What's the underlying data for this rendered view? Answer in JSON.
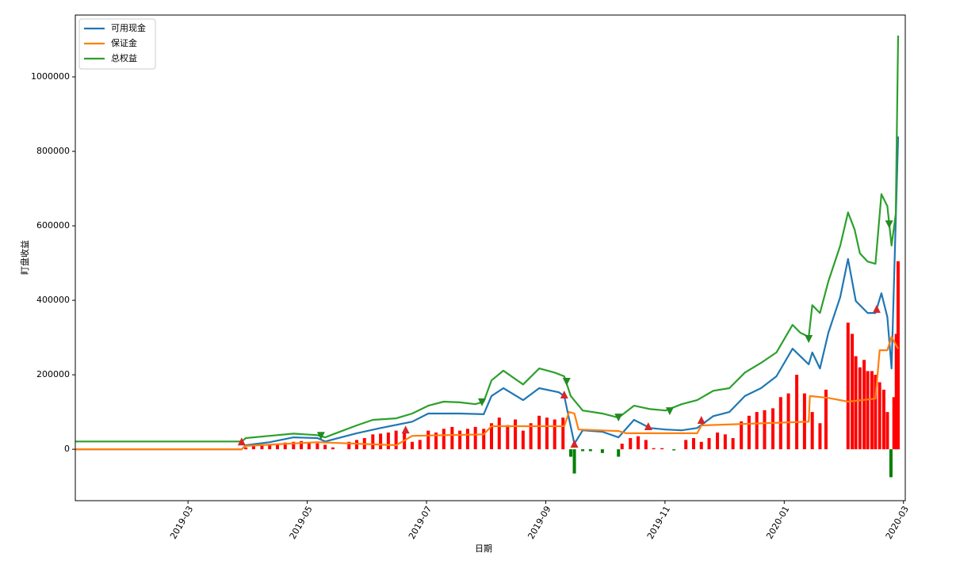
{
  "chart_data": {
    "type": "line",
    "xlabel": "日期",
    "ylabel": "盯盘收益",
    "xlim": [
      1.11,
      15.03
    ],
    "ylim": [
      -138000,
      1166000
    ],
    "xticks": [
      {
        "value": 3,
        "label": "2019-03"
      },
      {
        "value": 5,
        "label": "2019-05"
      },
      {
        "value": 7,
        "label": "2019-07"
      },
      {
        "value": 9,
        "label": "2019-09"
      },
      {
        "value": 11,
        "label": "2019-11"
      },
      {
        "value": 13,
        "label": "2020-01"
      },
      {
        "value": 15,
        "label": "2020-03"
      }
    ],
    "yticks": [
      0,
      200000,
      400000,
      600000,
      800000,
      1000000
    ],
    "legend": "upper left",
    "series": [
      {
        "name": "可用现金",
        "color": "#1f77b4",
        "x": [
          1.11,
          3.9,
          3.97,
          4.37,
          4.77,
          5.17,
          5.3,
          5.83,
          6.23,
          6.76,
          7.03,
          7.56,
          7.96,
          8.09,
          8.29,
          8.62,
          8.89,
          9.22,
          9.31,
          9.48,
          9.62,
          9.95,
          10.22,
          10.48,
          10.75,
          11.01,
          11.28,
          11.54,
          11.81,
          12.08,
          12.34,
          12.61,
          12.87,
          13.14,
          13.41,
          13.47,
          13.6,
          13.74,
          13.94,
          14.07,
          14.2,
          14.4,
          14.53,
          14.63,
          14.73,
          14.8,
          14.91
        ],
        "values": [
          0,
          0,
          11000,
          19000,
          32000,
          30000,
          21000,
          43000,
          57000,
          74000,
          96000,
          96000,
          94000,
          143000,
          164000,
          132000,
          164000,
          153000,
          143000,
          15000,
          51000,
          47000,
          32000,
          79000,
          57000,
          53000,
          51000,
          57000,
          89000,
          100000,
          143000,
          164000,
          196000,
          270000,
          228000,
          260000,
          217000,
          313000,
          409000,
          511000,
          398000,
          366000,
          366000,
          419000,
          355000,
          217000,
          840000
        ]
      },
      {
        "name": "保证金",
        "color": "#ff7f0e",
        "x": [
          1.11,
          3.9,
          3.97,
          5.17,
          6.49,
          6.76,
          7.96,
          8.09,
          9.31,
          9.39,
          9.48,
          9.55,
          10.22,
          10.35,
          11.54,
          11.61,
          13.41,
          13.43,
          13.74,
          14.07,
          14.53,
          14.6,
          14.73,
          14.8,
          14.91
        ],
        "values": [
          0,
          0,
          9000,
          19000,
          11000,
          36000,
          40000,
          62000,
          62000,
          100000,
          96000,
          53000,
          49000,
          43000,
          43000,
          64000,
          74000,
          143000,
          138000,
          128000,
          136000,
          266000,
          266000,
          302000,
          270000
        ]
      },
      {
        "name": "总权益",
        "color": "#2ca02c",
        "x": [
          1.11,
          3.9,
          3.97,
          4.37,
          4.77,
          5.17,
          5.3,
          5.43,
          5.83,
          6.1,
          6.49,
          6.76,
          7.03,
          7.29,
          7.56,
          7.82,
          7.96,
          8.09,
          8.29,
          8.62,
          8.89,
          9.15,
          9.31,
          9.42,
          9.62,
          9.95,
          10.22,
          10.48,
          10.75,
          11.01,
          11.28,
          11.54,
          11.81,
          12.08,
          12.34,
          12.61,
          12.87,
          13.14,
          13.27,
          13.41,
          13.47,
          13.6,
          13.74,
          13.94,
          14.07,
          14.18,
          14.27,
          14.4,
          14.53,
          14.63,
          14.73,
          14.8,
          14.87,
          14.91
        ],
        "values": [
          21000,
          21000,
          30000,
          36000,
          42000,
          38000,
          32000,
          40000,
          64000,
          79000,
          83000,
          96000,
          117000,
          128000,
          126000,
          121000,
          128000,
          185000,
          211000,
          174000,
          217000,
          206000,
          196000,
          143000,
          104000,
          96000,
          85000,
          117000,
          108000,
          104000,
          121000,
          132000,
          157000,
          164000,
          206000,
          232000,
          260000,
          334000,
          313000,
          302000,
          387000,
          366000,
          451000,
          547000,
          636000,
          590000,
          526000,
          504000,
          498000,
          685000,
          653000,
          547000,
          632000,
          1111000
        ]
      }
    ],
    "bars": {
      "positive_color": "#ff0000",
      "negative_color": "#008000",
      "x": [
        3.97,
        4.1,
        4.24,
        4.37,
        4.5,
        4.63,
        4.77,
        4.9,
        5.03,
        5.17,
        5.3,
        5.43,
        5.7,
        5.83,
        5.96,
        6.1,
        6.23,
        6.36,
        6.49,
        6.63,
        6.76,
        6.89,
        7.03,
        7.16,
        7.29,
        7.43,
        7.56,
        7.69,
        7.82,
        7.96,
        8.09,
        8.22,
        8.36,
        8.49,
        8.62,
        8.75,
        8.89,
        9.02,
        9.15,
        9.29,
        9.42,
        9.48,
        9.62,
        9.75,
        9.95,
        10.22,
        10.28,
        10.42,
        10.55,
        10.68,
        10.81,
        10.95,
        11.15,
        11.35,
        11.48,
        11.61,
        11.74,
        11.88,
        12.01,
        12.14,
        12.28,
        12.41,
        12.54,
        12.67,
        12.81,
        12.94,
        13.07,
        13.21,
        13.34,
        13.47,
        13.6,
        13.7,
        14.07,
        14.14,
        14.2,
        14.27,
        14.34,
        14.4,
        14.47,
        14.53,
        14.6,
        14.67,
        14.73,
        14.79,
        14.84,
        14.88,
        14.91
      ],
      "values": [
        5000,
        8000,
        10000,
        12000,
        15000,
        18000,
        20000,
        22000,
        18000,
        16000,
        12000,
        5000,
        20000,
        25000,
        30000,
        40000,
        42000,
        45000,
        50000,
        45000,
        20000,
        25000,
        50000,
        45000,
        55000,
        60000,
        50000,
        55000,
        60000,
        55000,
        70000,
        85000,
        65000,
        80000,
        50000,
        70000,
        90000,
        85000,
        80000,
        85000,
        -20000,
        -65000,
        -5000,
        -5000,
        -10000,
        -20000,
        15000,
        30000,
        35000,
        25000,
        3000,
        3000,
        -3000,
        25000,
        30000,
        20000,
        30000,
        45000,
        40000,
        30000,
        75000,
        90000,
        100000,
        105000,
        110000,
        140000,
        150000,
        200000,
        150000,
        100000,
        70000,
        160000,
        340000,
        310000,
        250000,
        220000,
        240000,
        210000,
        210000,
        200000,
        180000,
        160000,
        100000,
        -75000,
        140000,
        310000,
        505000
      ]
    },
    "buy_markers": {
      "color": "#d62728",
      "x": [
        3.9,
        6.65,
        9.31,
        9.48,
        10.72,
        11.61,
        14.55
      ],
      "values": [
        21000,
        53000,
        147000,
        15000,
        62000,
        79000,
        377000
      ]
    },
    "sell_markers": {
      "color": "#228b22",
      "x": [
        5.23,
        7.93,
        9.35,
        10.22,
        11.08,
        13.41,
        14.76
      ],
      "values": [
        36000,
        126000,
        181000,
        85000,
        102000,
        296000,
        604000
      ]
    }
  }
}
